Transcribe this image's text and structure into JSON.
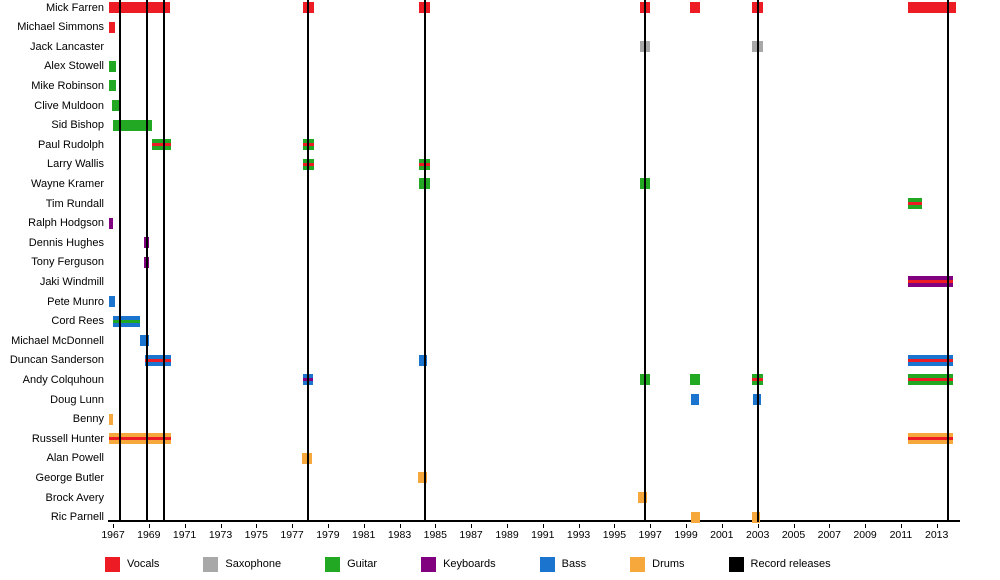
{
  "chart_data": {
    "type": "timeline",
    "x_axis": {
      "min": 1966.72,
      "max": 2014.3,
      "ticks": [
        1967,
        1969,
        1971,
        1973,
        1975,
        1977,
        1979,
        1981,
        1983,
        1985,
        1987,
        1989,
        1991,
        1993,
        1995,
        1997,
        1999,
        2001,
        2003,
        2005,
        2007,
        2009,
        2011,
        2013
      ]
    },
    "role_colors": {
      "vocals": "#ED1C24",
      "saxophone": "#A8A8A8",
      "guitar": "#22A822",
      "keyboards": "#800080",
      "bass": "#1B75CE",
      "drums": "#F6A83C",
      "releases": "#000000"
    },
    "legend": [
      {
        "label": "Vocals",
        "role": "vocals"
      },
      {
        "label": "Saxophone",
        "role": "saxophone"
      },
      {
        "label": "Guitar",
        "role": "guitar"
      },
      {
        "label": "Keyboards",
        "role": "keyboards"
      },
      {
        "label": "Bass",
        "role": "bass"
      },
      {
        "label": "Drums",
        "role": "drums"
      },
      {
        "label": "Record releases",
        "role": "releases"
      }
    ],
    "release_lines": [
      1967.4,
      1968.9,
      1969.85,
      1977.9,
      1984.4,
      1996.7,
      2003.0,
      2013.6
    ],
    "members": [
      {
        "name": "Mick Farren",
        "bars": [
          {
            "start": 1966.75,
            "end": 1970.2,
            "role": "vocals"
          },
          {
            "start": 1977.6,
            "end": 1978.25,
            "role": "vocals"
          },
          {
            "start": 1984.1,
            "end": 1984.7,
            "role": "vocals"
          },
          {
            "start": 1996.4,
            "end": 1997.0,
            "role": "vocals"
          },
          {
            "start": 1999.2,
            "end": 1999.8,
            "role": "vocals"
          },
          {
            "start": 2002.7,
            "end": 2003.3,
            "role": "vocals"
          },
          {
            "start": 2011.4,
            "end": 2014.1,
            "role": "vocals"
          }
        ]
      },
      {
        "name": "Michael Simmons",
        "bars": [
          {
            "start": 1966.75,
            "end": 1967.1,
            "role": "vocals"
          }
        ]
      },
      {
        "name": "Jack Lancaster",
        "bars": [
          {
            "start": 1996.4,
            "end": 1997.0,
            "role": "saxophone"
          },
          {
            "start": 2002.7,
            "end": 2003.3,
            "role": "saxophone"
          }
        ]
      },
      {
        "name": "Alex Stowell",
        "bars": [
          {
            "start": 1966.75,
            "end": 1967.15,
            "role": "guitar"
          }
        ]
      },
      {
        "name": "Mike Robinson",
        "bars": [
          {
            "start": 1966.75,
            "end": 1967.15,
            "role": "guitar"
          }
        ]
      },
      {
        "name": "Clive Muldoon",
        "bars": [
          {
            "start": 1966.95,
            "end": 1967.35,
            "role": "guitar"
          }
        ]
      },
      {
        "name": "Sid Bishop",
        "bars": [
          {
            "start": 1967.0,
            "end": 1969.2,
            "role": "guitar"
          }
        ]
      },
      {
        "name": "Paul Rudolph",
        "bars": [
          {
            "start": 1969.2,
            "end": 1970.25,
            "role": "guitar",
            "secondary": "vocals"
          },
          {
            "start": 1977.6,
            "end": 1978.25,
            "role": "guitar",
            "secondary": "vocals"
          }
        ]
      },
      {
        "name": "Larry Wallis",
        "bars": [
          {
            "start": 1977.6,
            "end": 1978.25,
            "role": "guitar",
            "secondary": "vocals"
          },
          {
            "start": 1984.1,
            "end": 1984.7,
            "role": "guitar",
            "secondary": "vocals"
          }
        ]
      },
      {
        "name": "Wayne Kramer",
        "bars": [
          {
            "start": 1984.1,
            "end": 1984.7,
            "role": "guitar"
          },
          {
            "start": 1996.4,
            "end": 1997.0,
            "role": "guitar"
          }
        ]
      },
      {
        "name": "Tim Rundall",
        "bars": [
          {
            "start": 2011.4,
            "end": 2012.2,
            "role": "guitar",
            "secondary": "vocals"
          }
        ]
      },
      {
        "name": "Ralph Hodgson",
        "bars": [
          {
            "start": 1966.75,
            "end": 1967.0,
            "role": "keyboards"
          }
        ]
      },
      {
        "name": "Dennis Hughes",
        "bars": [
          {
            "start": 1968.75,
            "end": 1969.0,
            "role": "keyboards"
          }
        ]
      },
      {
        "name": "Tony Ferguson",
        "bars": [
          {
            "start": 1968.75,
            "end": 1969.0,
            "role": "keyboards"
          }
        ]
      },
      {
        "name": "Jaki Windmill",
        "bars": [
          {
            "start": 2011.4,
            "end": 2013.9,
            "role": "keyboards",
            "secondary": "vocals"
          }
        ]
      },
      {
        "name": "Pete Munro",
        "bars": [
          {
            "start": 1966.75,
            "end": 1967.1,
            "role": "bass"
          }
        ]
      },
      {
        "name": "Cord Rees",
        "bars": [
          {
            "start": 1967.0,
            "end": 1968.5,
            "role": "bass",
            "secondary": "guitar"
          }
        ]
      },
      {
        "name": "Michael McDonnell",
        "bars": [
          {
            "start": 1968.5,
            "end": 1969.0,
            "role": "bass"
          }
        ]
      },
      {
        "name": "Duncan Sanderson",
        "bars": [
          {
            "start": 1968.8,
            "end": 1970.25,
            "role": "bass",
            "secondary": "vocals"
          },
          {
            "start": 1984.1,
            "end": 1984.55,
            "role": "bass"
          },
          {
            "start": 2011.4,
            "end": 2013.9,
            "role": "bass",
            "secondary": "vocals"
          }
        ]
      },
      {
        "name": "Andy Colquhoun",
        "bars": [
          {
            "start": 1977.6,
            "end": 1978.2,
            "role": "bass",
            "secondary": "keyboards"
          },
          {
            "start": 1996.4,
            "end": 1997.0,
            "role": "guitar"
          },
          {
            "start": 1999.2,
            "end": 1999.8,
            "role": "guitar"
          },
          {
            "start": 2002.7,
            "end": 2003.3,
            "role": "guitar",
            "secondary": "vocals"
          },
          {
            "start": 2011.4,
            "end": 2013.9,
            "role": "guitar",
            "secondary": "vocals"
          }
        ]
      },
      {
        "name": "Doug Lunn",
        "bars": [
          {
            "start": 1999.3,
            "end": 1999.75,
            "role": "bass"
          },
          {
            "start": 2002.75,
            "end": 2003.2,
            "role": "bass"
          }
        ]
      },
      {
        "name": "Benny",
        "bars": [
          {
            "start": 1966.75,
            "end": 1967.0,
            "role": "drums"
          }
        ]
      },
      {
        "name": "Russell Hunter",
        "bars": [
          {
            "start": 1966.75,
            "end": 1970.25,
            "role": "drums",
            "secondary": "vocals"
          },
          {
            "start": 2011.4,
            "end": 2013.9,
            "role": "drums",
            "secondary": "vocals"
          }
        ]
      },
      {
        "name": "Alan Powell",
        "bars": [
          {
            "start": 1977.55,
            "end": 1978.1,
            "role": "drums"
          }
        ]
      },
      {
        "name": "George Butler",
        "bars": [
          {
            "start": 1984.05,
            "end": 1984.55,
            "role": "drums"
          }
        ]
      },
      {
        "name": "Brock Avery",
        "bars": [
          {
            "start": 1996.3,
            "end": 1996.85,
            "role": "drums"
          }
        ]
      },
      {
        "name": "Ric Parnell",
        "bars": [
          {
            "start": 1999.25,
            "end": 1999.75,
            "role": "drums"
          },
          {
            "start": 2002.7,
            "end": 2003.15,
            "role": "drums"
          }
        ]
      }
    ]
  }
}
